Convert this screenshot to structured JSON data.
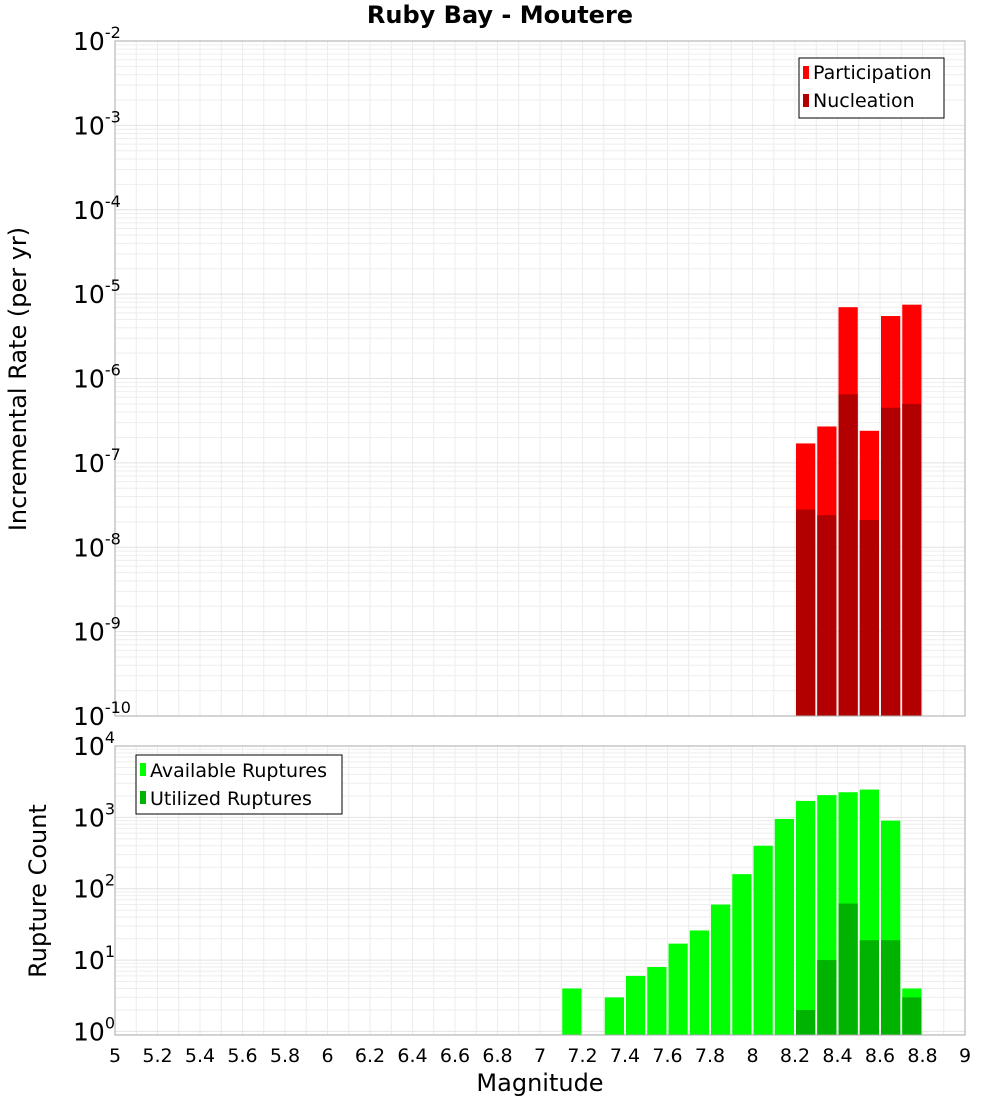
{
  "chart_data": [
    {
      "id": "rate",
      "type": "bar",
      "title": "Ruby Bay - Moutere",
      "ylabel": "Incremental Rate (per yr)",
      "xlabel": "",
      "xlim": [
        5,
        9
      ],
      "ylim_log10": [
        -10,
        -2
      ],
      "y_scale": "log",
      "y_ticks": [
        {
          "base": "10",
          "exp": "-2"
        },
        {
          "base": "10",
          "exp": "-3"
        },
        {
          "base": "10",
          "exp": "-4"
        },
        {
          "base": "10",
          "exp": "-5"
        },
        {
          "base": "10",
          "exp": "-6"
        },
        {
          "base": "10",
          "exp": "-7"
        },
        {
          "base": "10",
          "exp": "-8"
        },
        {
          "base": "10",
          "exp": "-9"
        },
        {
          "base": "10",
          "exp": "-10"
        }
      ],
      "legend_position": "top-right",
      "x": [
        8.25,
        8.35,
        8.45,
        8.55,
        8.65,
        8.75
      ],
      "series": [
        {
          "name": "Participation",
          "color": "#ff0000",
          "values": [
            1.7e-07,
            2.7e-07,
            7e-06,
            2.4e-07,
            5.5e-06,
            7.5e-06
          ]
        },
        {
          "name": "Nucleation",
          "color": "#b20000",
          "values": [
            2.8e-08,
            2.4e-08,
            6.5e-07,
            2.1e-08,
            4.5e-07,
            5e-07
          ]
        }
      ],
      "grid": true
    },
    {
      "id": "count",
      "type": "bar",
      "title": "",
      "ylabel": "Rupture Count",
      "xlabel": "Magnitude",
      "xlim": [
        5,
        9
      ],
      "ylim_log10": [
        -0.05,
        4
      ],
      "y_scale": "log",
      "y_ticks": [
        {
          "base": "10",
          "exp": "4"
        },
        {
          "base": "10",
          "exp": "3"
        },
        {
          "base": "10",
          "exp": "2"
        },
        {
          "base": "10",
          "exp": "1"
        },
        {
          "base": "10",
          "exp": "0"
        }
      ],
      "x_tick_labels": [
        "5",
        "5.2",
        "5.4",
        "5.6",
        "5.8",
        "6",
        "6.2",
        "6.4",
        "6.6",
        "6.8",
        "7",
        "7.2",
        "7.4",
        "7.6",
        "7.8",
        "8",
        "8.2",
        "8.4",
        "8.6",
        "8.8",
        "9"
      ],
      "legend_position": "top-left",
      "x": [
        7.15,
        7.35,
        7.45,
        7.55,
        7.65,
        7.75,
        7.85,
        7.95,
        8.05,
        8.15,
        8.25,
        8.35,
        8.45,
        8.55,
        8.65,
        8.75
      ],
      "series": [
        {
          "name": "Available Ruptures",
          "color": "#00ff00",
          "values": [
            4,
            3,
            6,
            8,
            17,
            26,
            60,
            160,
            400,
            950,
            1700,
            2050,
            2250,
            2450,
            900,
            4
          ]
        },
        {
          "name": "Utilized Ruptures",
          "color": "#00b300",
          "values": [
            null,
            null,
            null,
            null,
            null,
            null,
            null,
            null,
            null,
            null,
            2,
            10,
            62,
            19,
            19,
            3
          ]
        }
      ],
      "grid": true
    }
  ]
}
